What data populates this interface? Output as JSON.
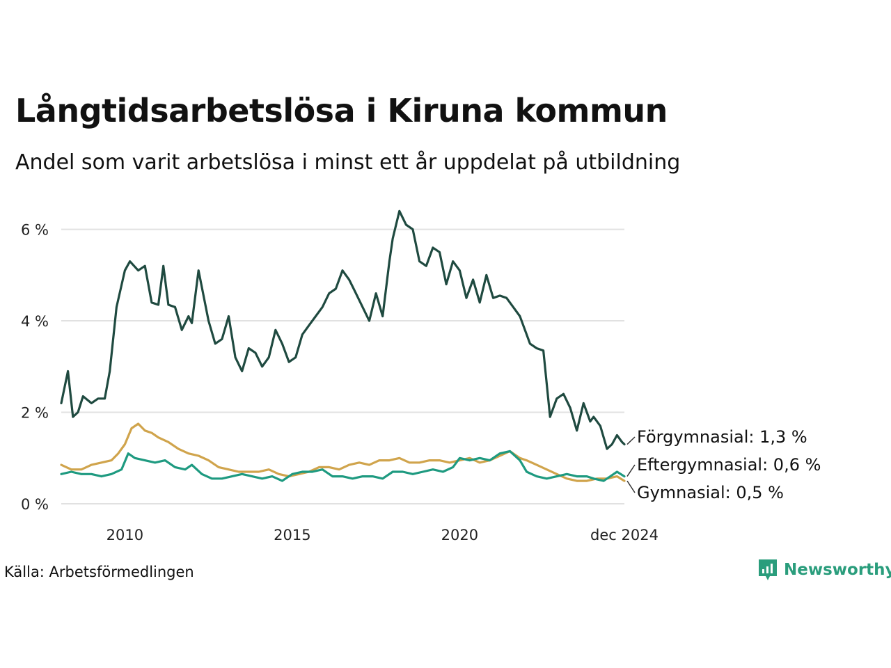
{
  "header": {
    "title": "Långtidsarbetslösa i Kiruna kommun",
    "subtitle": "Andel som varit arbetslösa i minst ett år uppdelat på utbildning"
  },
  "footer": {
    "source": "Källa: Arbetsförmedlingen",
    "brand": "Newsworthy"
  },
  "colors": {
    "forgymnasial": "#1f4a40",
    "eftergymnasial": "#1e9a80",
    "gymnasial": "#d0a44c",
    "grid": "#e1e1e1",
    "brand": "#2a9d7c"
  },
  "chart_data": {
    "type": "line",
    "title": "Långtidsarbetslösa i Kiruna kommun",
    "subtitle": "Andel som varit arbetslösa i minst ett år uppdelat på utbildning",
    "xlabel": "",
    "ylabel": "",
    "xlim": [
      2008.1,
      2024.92
    ],
    "ylim": [
      0,
      6.5
    ],
    "grid": true,
    "y_ticks": [
      0,
      2,
      4,
      6
    ],
    "y_tick_labels": [
      "0 %",
      "2 %",
      "4 %",
      "6 %"
    ],
    "x_ticks": [
      2010,
      2015,
      2020,
      2024.92
    ],
    "x_tick_labels": [
      "2010",
      "2015",
      "2020",
      "dec 2024"
    ],
    "series": [
      {
        "name": "Förgymnasial",
        "label": "Förgymnasial: 1,3 %",
        "color_key": "forgymnasial",
        "x": [
          2008.1,
          2008.3,
          2008.45,
          2008.6,
          2008.75,
          2009.0,
          2009.2,
          2009.4,
          2009.55,
          2009.75,
          2010.0,
          2010.15,
          2010.4,
          2010.6,
          2010.8,
          2011.0,
          2011.15,
          2011.3,
          2011.5,
          2011.7,
          2011.9,
          2012.0,
          2012.2,
          2012.5,
          2012.7,
          2012.9,
          2013.1,
          2013.3,
          2013.5,
          2013.7,
          2013.9,
          2014.1,
          2014.3,
          2014.5,
          2014.7,
          2014.9,
          2015.1,
          2015.3,
          2015.5,
          2015.7,
          2015.9,
          2016.1,
          2016.3,
          2016.5,
          2016.7,
          2016.9,
          2017.1,
          2017.3,
          2017.5,
          2017.7,
          2017.9,
          2018.0,
          2018.2,
          2018.4,
          2018.6,
          2018.8,
          2019.0,
          2019.2,
          2019.4,
          2019.6,
          2019.8,
          2020.0,
          2020.2,
          2020.4,
          2020.6,
          2020.8,
          2021.0,
          2021.2,
          2021.4,
          2021.6,
          2021.8,
          2022.0,
          2022.1,
          2022.3,
          2022.5,
          2022.7,
          2022.9,
          2023.1,
          2023.3,
          2023.5,
          2023.7,
          2023.9,
          2024.0,
          2024.2,
          2024.4,
          2024.55,
          2024.7,
          2024.85,
          2024.92
        ],
        "y": [
          2.2,
          2.9,
          1.9,
          2.0,
          2.35,
          2.2,
          2.3,
          2.3,
          2.9,
          4.3,
          5.1,
          5.3,
          5.1,
          5.2,
          4.4,
          4.35,
          5.2,
          4.35,
          4.3,
          3.8,
          4.1,
          3.95,
          5.1,
          4.0,
          3.5,
          3.6,
          4.1,
          3.2,
          2.9,
          3.4,
          3.3,
          3.0,
          3.2,
          3.8,
          3.5,
          3.1,
          3.2,
          3.7,
          3.9,
          4.1,
          4.3,
          4.6,
          4.7,
          5.1,
          4.9,
          4.6,
          4.3,
          4.0,
          4.6,
          4.1,
          5.3,
          5.8,
          6.4,
          6.1,
          6.0,
          5.3,
          5.2,
          5.6,
          5.5,
          4.8,
          5.3,
          5.1,
          4.5,
          4.9,
          4.4,
          5.0,
          4.5,
          4.55,
          4.5,
          4.3,
          4.1,
          3.7,
          3.5,
          3.4,
          3.35,
          1.9,
          2.3,
          2.4,
          2.1,
          1.6,
          2.2,
          1.8,
          1.9,
          1.7,
          1.2,
          1.3,
          1.5,
          1.35,
          1.3
        ]
      },
      {
        "name": "Eftergymnasial",
        "label": "Eftergymnasial: 0,6 %",
        "color_key": "eftergymnasial",
        "x": [
          2008.1,
          2008.4,
          2008.7,
          2009.0,
          2009.3,
          2009.6,
          2009.9,
          2010.1,
          2010.3,
          2010.6,
          2010.9,
          2011.2,
          2011.5,
          2011.8,
          2012.0,
          2012.3,
          2012.6,
          2012.9,
          2013.2,
          2013.5,
          2013.8,
          2014.1,
          2014.4,
          2014.7,
          2015.0,
          2015.3,
          2015.6,
          2015.9,
          2016.2,
          2016.5,
          2016.8,
          2017.1,
          2017.4,
          2017.7,
          2018.0,
          2018.3,
          2018.6,
          2018.9,
          2019.2,
          2019.5,
          2019.8,
          2020.0,
          2020.3,
          2020.6,
          2020.9,
          2021.2,
          2021.5,
          2021.8,
          2022.0,
          2022.3,
          2022.6,
          2022.9,
          2023.2,
          2023.5,
          2023.8,
          2024.0,
          2024.3,
          2024.5,
          2024.7,
          2024.92
        ],
        "y": [
          0.65,
          0.7,
          0.65,
          0.65,
          0.6,
          0.65,
          0.75,
          1.1,
          1.0,
          0.95,
          0.9,
          0.95,
          0.8,
          0.75,
          0.85,
          0.65,
          0.55,
          0.55,
          0.6,
          0.65,
          0.6,
          0.55,
          0.6,
          0.5,
          0.65,
          0.7,
          0.7,
          0.75,
          0.6,
          0.6,
          0.55,
          0.6,
          0.6,
          0.55,
          0.7,
          0.7,
          0.65,
          0.7,
          0.75,
          0.7,
          0.8,
          1.0,
          0.95,
          1.0,
          0.95,
          1.1,
          1.15,
          0.95,
          0.7,
          0.6,
          0.55,
          0.6,
          0.65,
          0.6,
          0.6,
          0.55,
          0.5,
          0.6,
          0.7,
          0.6
        ]
      },
      {
        "name": "Gymnasial",
        "label": "Gymnasial: 0,5 %",
        "color_key": "gymnasial",
        "x": [
          2008.1,
          2008.4,
          2008.7,
          2009.0,
          2009.3,
          2009.6,
          2009.8,
          2010.0,
          2010.2,
          2010.4,
          2010.6,
          2010.8,
          2011.0,
          2011.3,
          2011.6,
          2011.9,
          2012.2,
          2012.5,
          2012.8,
          2013.1,
          2013.4,
          2013.7,
          2014.0,
          2014.3,
          2014.6,
          2014.9,
          2015.2,
          2015.5,
          2015.8,
          2016.1,
          2016.4,
          2016.7,
          2017.0,
          2017.3,
          2017.6,
          2017.9,
          2018.2,
          2018.5,
          2018.8,
          2019.1,
          2019.4,
          2019.7,
          2020.0,
          2020.3,
          2020.6,
          2020.9,
          2021.2,
          2021.5,
          2021.8,
          2022.0,
          2022.3,
          2022.6,
          2022.9,
          2023.2,
          2023.5,
          2023.8,
          2024.1,
          2024.4,
          2024.7,
          2024.92
        ],
        "y": [
          0.85,
          0.75,
          0.75,
          0.85,
          0.9,
          0.95,
          1.1,
          1.3,
          1.65,
          1.75,
          1.6,
          1.55,
          1.45,
          1.35,
          1.2,
          1.1,
          1.05,
          0.95,
          0.8,
          0.75,
          0.7,
          0.7,
          0.7,
          0.75,
          0.65,
          0.6,
          0.65,
          0.7,
          0.8,
          0.8,
          0.75,
          0.85,
          0.9,
          0.85,
          0.95,
          0.95,
          1.0,
          0.9,
          0.9,
          0.95,
          0.95,
          0.9,
          0.95,
          1.0,
          0.9,
          0.95,
          1.05,
          1.15,
          1.0,
          0.95,
          0.85,
          0.75,
          0.65,
          0.55,
          0.5,
          0.5,
          0.55,
          0.55,
          0.6,
          0.5
        ]
      }
    ]
  }
}
